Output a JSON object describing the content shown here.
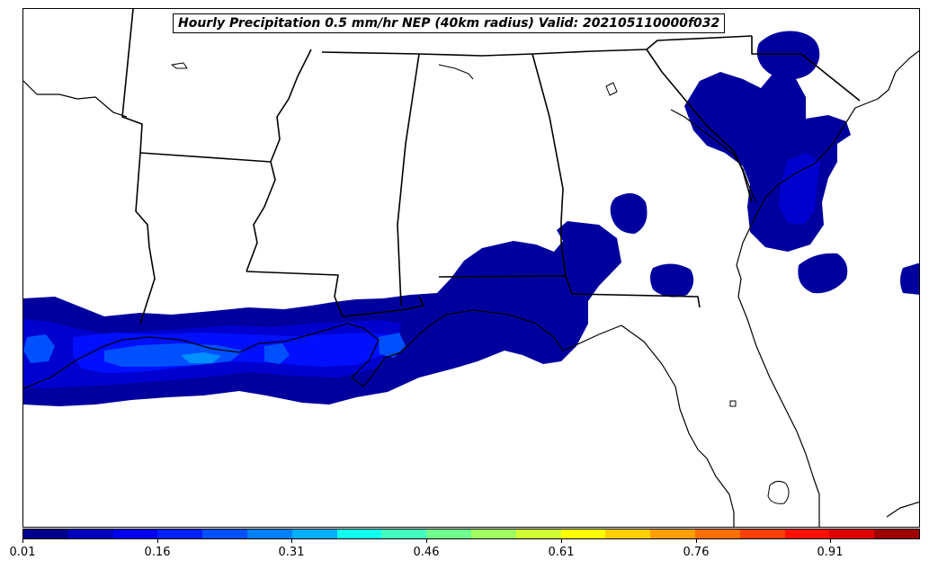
{
  "title": "Hourly Precipitation 0.5 mm/hr NEP (40km radius) Valid: 202105110000f032",
  "map": {
    "projection": "lambert",
    "region": "Southeastern United States / Gulf Coast",
    "field": "probability of hourly precipitation >= 0.5 mm/hr",
    "features": [
      "state-borders",
      "coastlines",
      "lakes"
    ]
  },
  "colorbar": {
    "colors": [
      "#00008f",
      "#0000bf",
      "#0000ef",
      "#0020ff",
      "#0050ff",
      "#0080ff",
      "#00b0ff",
      "#10ffef",
      "#40ffbf",
      "#70ff8f",
      "#a0ff5f",
      "#cfff30",
      "#ffff00",
      "#ffd000",
      "#ffa000",
      "#ff7000",
      "#ff4000",
      "#ff1000",
      "#df0000",
      "#9f0000"
    ],
    "ticks": [
      "0.01",
      "0.16",
      "0.31",
      "0.46",
      "0.61",
      "0.76",
      "0.91"
    ],
    "tick_values": [
      0.01,
      0.16,
      0.31,
      0.46,
      0.61,
      0.76,
      0.91
    ],
    "range": [
      0.01,
      1.01
    ]
  }
}
